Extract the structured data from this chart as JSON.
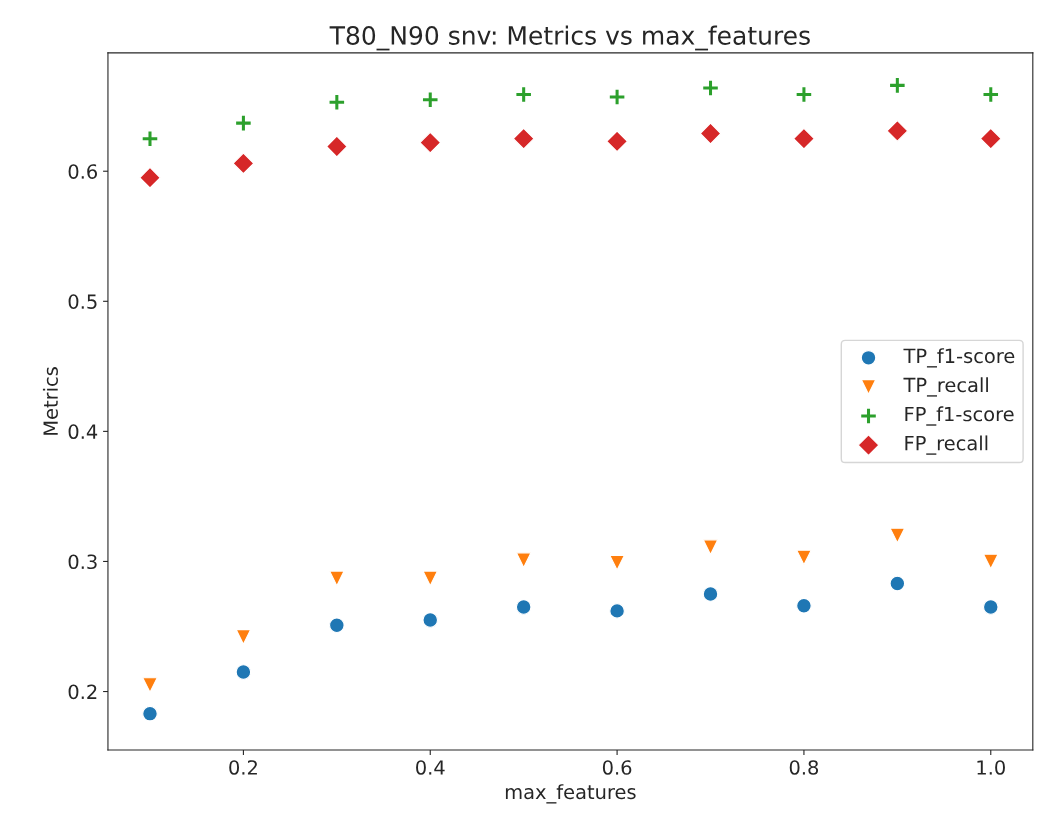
{
  "chart_data": {
    "type": "scatter",
    "title": "T80_N90 snv: Metrics vs max_features",
    "xlabel": "max_features",
    "ylabel": "Metrics",
    "x": [
      0.1,
      0.2,
      0.3,
      0.4,
      0.5,
      0.6,
      0.7,
      0.8,
      0.9,
      1.0
    ],
    "series": [
      {
        "name": "TP_f1-score",
        "color": "#1f77b4",
        "marker": "circle",
        "values": [
          0.183,
          0.215,
          0.251,
          0.255,
          0.265,
          0.262,
          0.275,
          0.266,
          0.283,
          0.265
        ]
      },
      {
        "name": "TP_recall",
        "color": "#ff7f0e",
        "marker": "triangle",
        "values": [
          0.205,
          0.242,
          0.287,
          0.287,
          0.301,
          0.299,
          0.311,
          0.303,
          0.32,
          0.3
        ]
      },
      {
        "name": "FP_f1-score",
        "color": "#2ca02c",
        "marker": "cross",
        "values": [
          0.625,
          0.637,
          0.653,
          0.655,
          0.659,
          0.657,
          0.664,
          0.659,
          0.666,
          0.659
        ]
      },
      {
        "name": "FP_recall",
        "color": "#d62728",
        "marker": "diamond",
        "values": [
          0.595,
          0.606,
          0.619,
          0.622,
          0.625,
          0.623,
          0.629,
          0.625,
          0.631,
          0.625
        ]
      }
    ],
    "xlim": [
      0.055,
      1.045
    ],
    "xticks": [
      0.2,
      0.4,
      0.6,
      0.8,
      {
        "value": 1.0,
        "label": "1.0"
      }
    ],
    "ylim": [
      0.155,
      0.691
    ],
    "yticks": [
      0.2,
      0.3,
      0.4,
      0.5,
      0.6
    ],
    "grid": false,
    "legend": "right"
  }
}
